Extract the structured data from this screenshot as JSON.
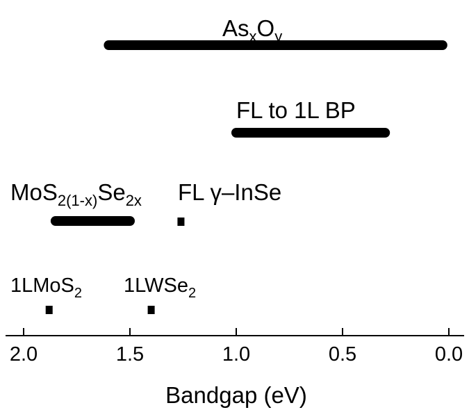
{
  "chart_data": {
    "type": "range",
    "xlabel": "Bandgap (eV)",
    "xlim": [
      2.0,
      0.0
    ],
    "x_reversed": true,
    "x_ticks": [
      {
        "value": 2.0,
        "label": "2.0"
      },
      {
        "value": 1.5,
        "label": "1.5"
      },
      {
        "value": 1.0,
        "label": "1.0"
      },
      {
        "value": 0.5,
        "label": "0.5"
      },
      {
        "value": 0.0,
        "label": "0.0"
      }
    ],
    "materials": [
      {
        "id": "asxoy",
        "label_parts": [
          {
            "t": "As"
          },
          {
            "t": "x",
            "sub": true
          },
          {
            "t": "O"
          },
          {
            "t": "y",
            "sub": true
          }
        ],
        "range": [
          1.6,
          0.03
        ]
      },
      {
        "id": "bp",
        "label_parts": [
          {
            "t": "FL to 1L BP"
          }
        ],
        "range": [
          1.0,
          0.3
        ]
      },
      {
        "id": "mosse",
        "label_parts": [
          {
            "t": "MoS"
          },
          {
            "t": "2(1-x)",
            "sub": true
          },
          {
            "t": "Se"
          },
          {
            "t": "2x",
            "sub": true
          }
        ],
        "range": [
          1.85,
          1.5
        ]
      },
      {
        "id": "inse",
        "label_parts": [
          {
            "t": "FL γ–InSe"
          }
        ],
        "range": [
          1.26,
          1.26
        ]
      },
      {
        "id": "mos2",
        "label_parts": [
          {
            "t": "1LMoS"
          },
          {
            "t": "2",
            "sub": true
          }
        ],
        "range": [
          1.88,
          1.88
        ]
      },
      {
        "id": "wse2",
        "label_parts": [
          {
            "t": "1LWSe"
          },
          {
            "t": "2",
            "sub": true
          }
        ],
        "range": [
          1.4,
          1.4
        ]
      }
    ]
  }
}
